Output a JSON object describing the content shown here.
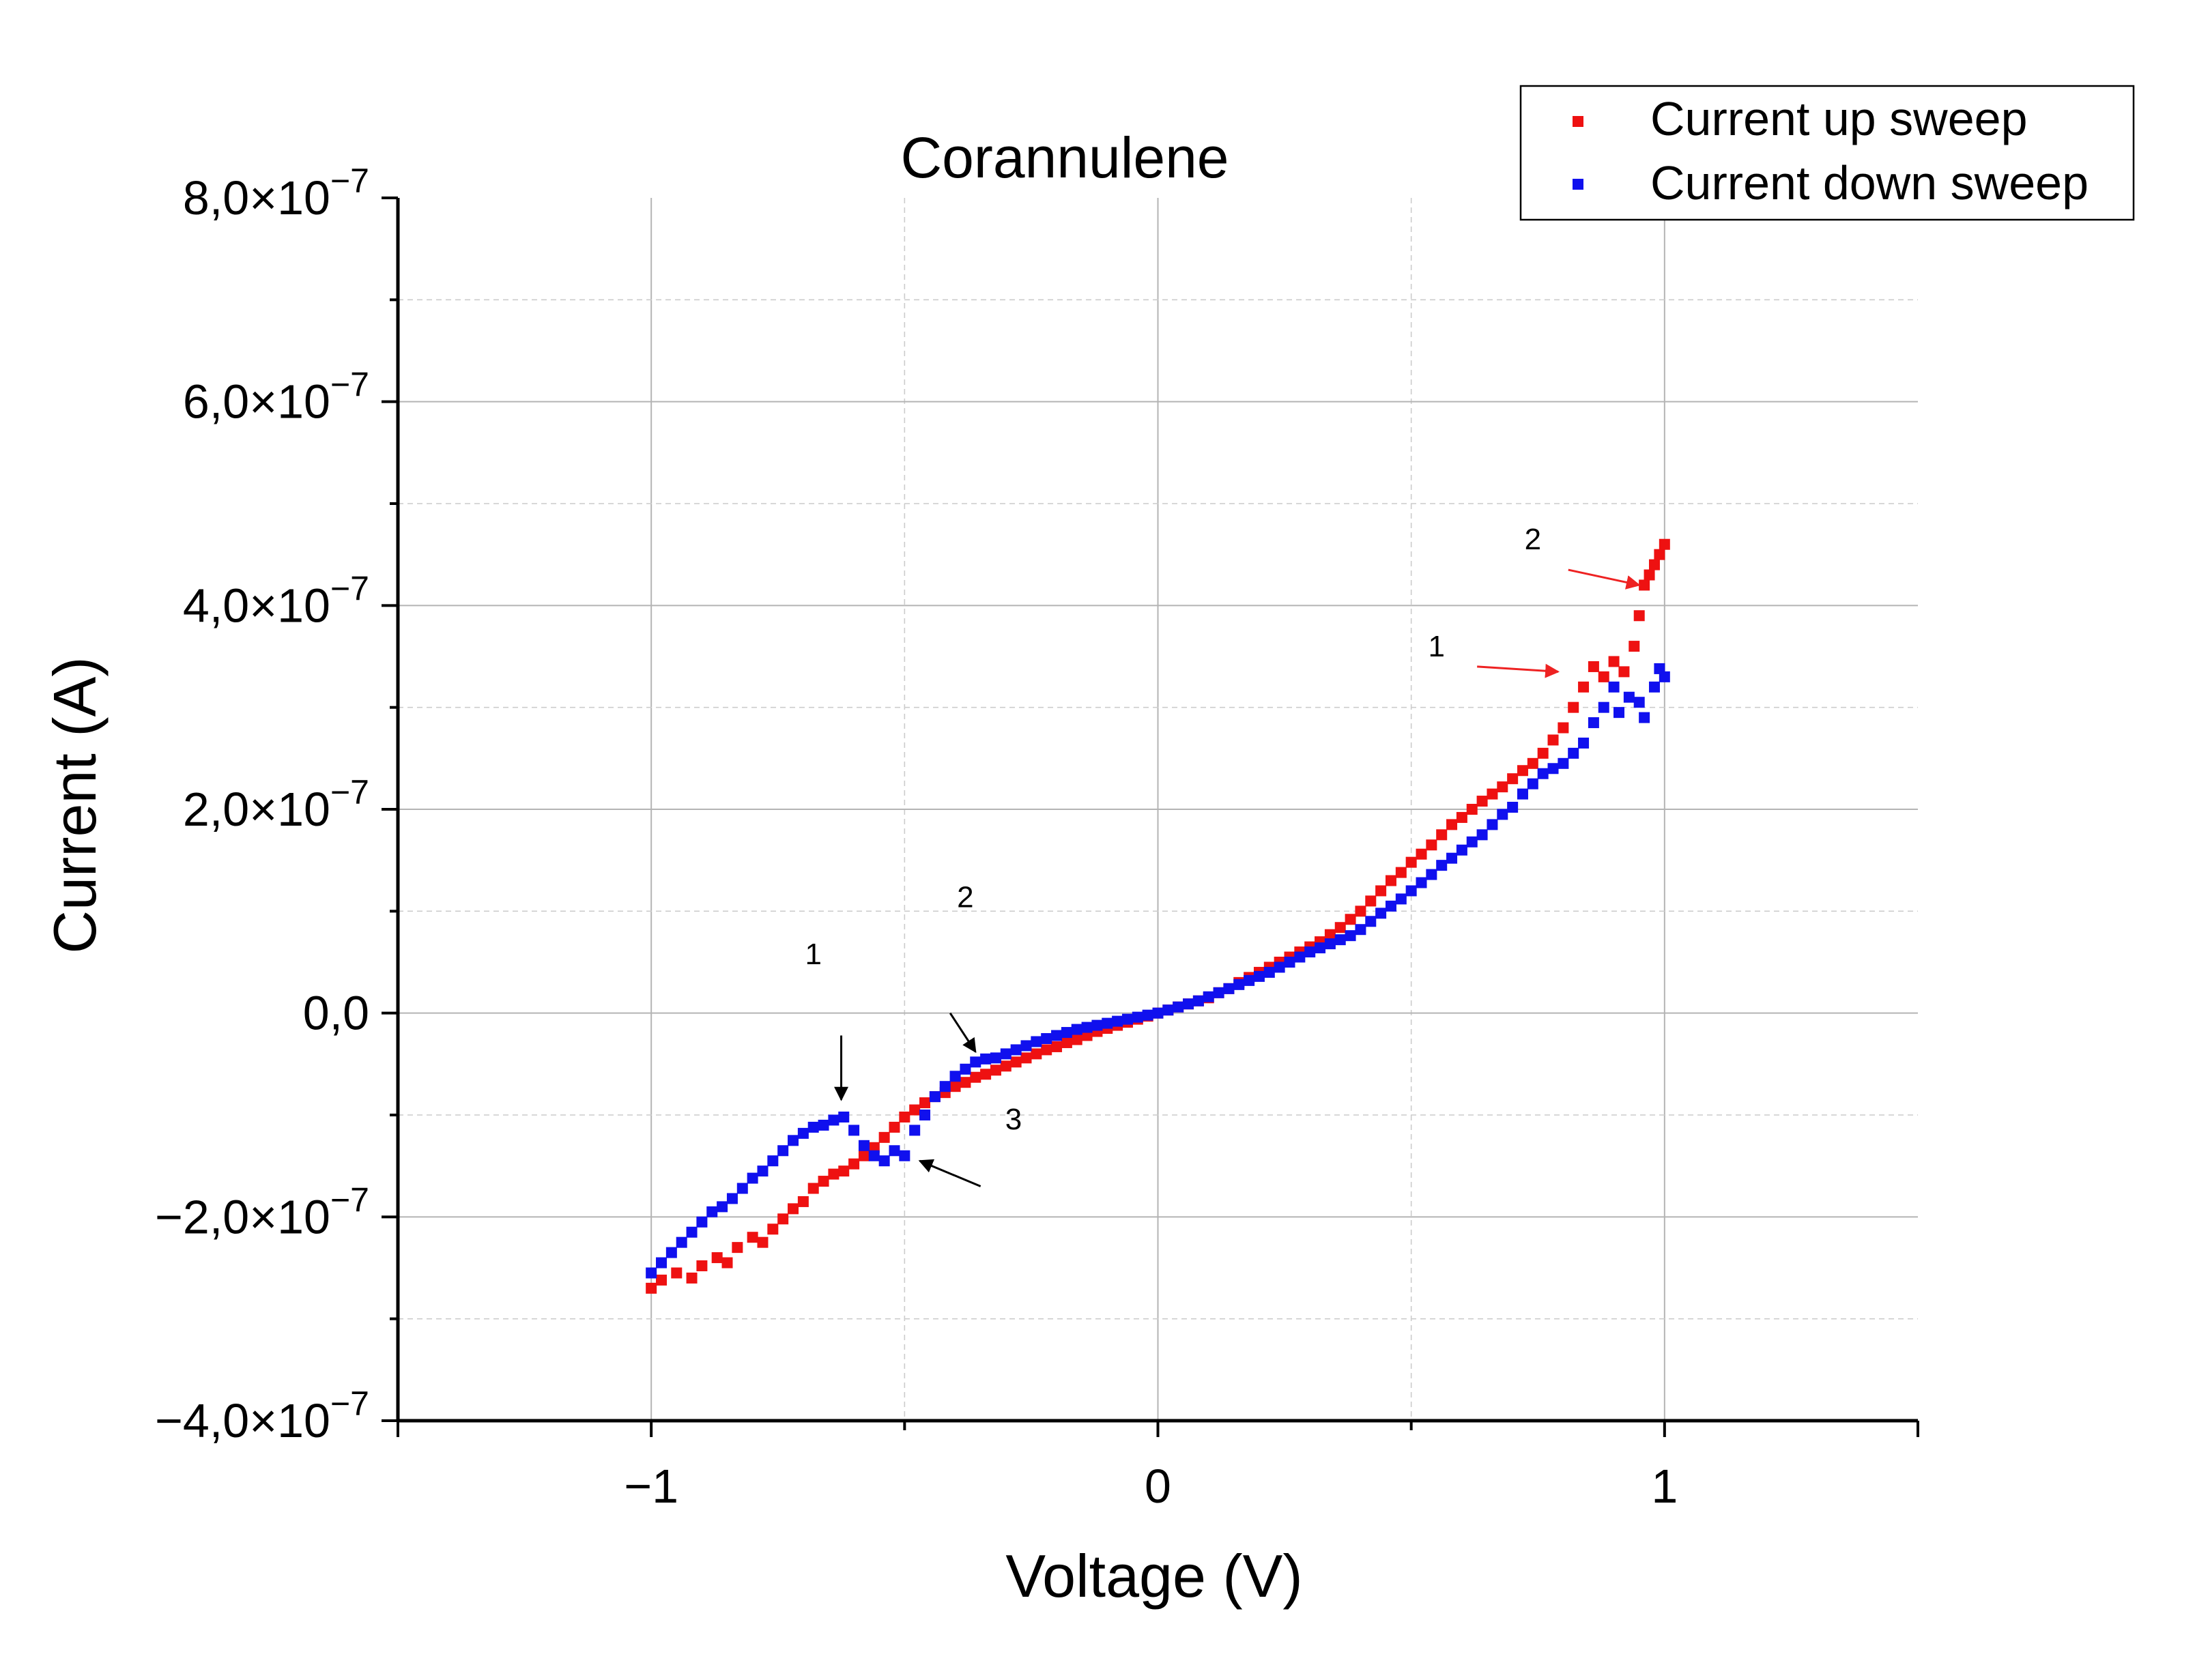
{
  "chart_data": {
    "type": "scatter",
    "title": "Corannulene",
    "xlabel": "Voltage (V)",
    "ylabel": "Current (A)",
    "xlim": [
      -1.5,
      1.5
    ],
    "ylim": [
      -4e-07,
      8e-07
    ],
    "grid": true,
    "legend_position": "top-right",
    "x_ticks": [
      {
        "value": -1,
        "label": "−1"
      },
      {
        "value": 0,
        "label": "0"
      },
      {
        "value": 1,
        "label": "1"
      }
    ],
    "y_ticks": [
      {
        "value": 8e-07,
        "mantissa": "8,0",
        "exp": "−7"
      },
      {
        "value": 6e-07,
        "mantissa": "6,0",
        "exp": "−7"
      },
      {
        "value": 4e-07,
        "mantissa": "4,0",
        "exp": "−7"
      },
      {
        "value": 2e-07,
        "mantissa": "2,0",
        "exp": "−7"
      },
      {
        "value": 0,
        "mantissa": "0,0",
        "exp": ""
      },
      {
        "value": -2e-07,
        "mantissa": "−2,0",
        "exp": "−7"
      },
      {
        "value": -4e-07,
        "mantissa": "−4,0",
        "exp": "−7"
      }
    ],
    "times_symbol": "×10",
    "series": [
      {
        "name": "Current up sweep",
        "color": "#ee1111",
        "points": [
          [
            -1.0,
            -2.7e-07
          ],
          [
            -0.98,
            -2.62e-07
          ],
          [
            -0.95,
            -2.55e-07
          ],
          [
            -0.92,
            -2.6e-07
          ],
          [
            -0.9,
            -2.48e-07
          ],
          [
            -0.87,
            -2.4e-07
          ],
          [
            -0.85,
            -2.45e-07
          ],
          [
            -0.83,
            -2.3e-07
          ],
          [
            -0.8,
            -2.2e-07
          ],
          [
            -0.78,
            -2.25e-07
          ],
          [
            -0.76,
            -2.12e-07
          ],
          [
            -0.74,
            -2.02e-07
          ],
          [
            -0.72,
            -1.92e-07
          ],
          [
            -0.7,
            -1.85e-07
          ],
          [
            -0.68,
            -1.72e-07
          ],
          [
            -0.66,
            -1.65e-07
          ],
          [
            -0.64,
            -1.58e-07
          ],
          [
            -0.62,
            -1.55e-07
          ],
          [
            -0.6,
            -1.48e-07
          ],
          [
            -0.58,
            -1.4e-07
          ],
          [
            -0.56,
            -1.32e-07
          ],
          [
            -0.54,
            -1.22e-07
          ],
          [
            -0.52,
            -1.12e-07
          ],
          [
            -0.5,
            -1.02e-07
          ],
          [
            -0.48,
            -9.5e-08
          ],
          [
            -0.46,
            -8.8e-08
          ],
          [
            -0.44,
            -8.2e-08
          ],
          [
            -0.42,
            -7.8e-08
          ],
          [
            -0.4,
            -7.2e-08
          ],
          [
            -0.38,
            -6.8e-08
          ],
          [
            -0.36,
            -6.3e-08
          ],
          [
            -0.34,
            -6e-08
          ],
          [
            -0.32,
            -5.6e-08
          ],
          [
            -0.3,
            -5.2e-08
          ],
          [
            -0.28,
            -4.8e-08
          ],
          [
            -0.26,
            -4.4e-08
          ],
          [
            -0.24,
            -4e-08
          ],
          [
            -0.22,
            -3.6e-08
          ],
          [
            -0.2,
            -3.3e-08
          ],
          [
            -0.18,
            -2.9e-08
          ],
          [
            -0.16,
            -2.6e-08
          ],
          [
            -0.14,
            -2.2e-08
          ],
          [
            -0.12,
            -1.8e-08
          ],
          [
            -0.1,
            -1.5e-08
          ],
          [
            -0.08,
            -1.2e-08
          ],
          [
            -0.06,
            -9e-09
          ],
          [
            -0.04,
            -6e-09
          ],
          [
            -0.02,
            -3e-09
          ],
          [
            0.0,
            0.0
          ],
          [
            0.02,
            3e-09
          ],
          [
            0.04,
            6e-09
          ],
          [
            0.06,
            9e-09
          ],
          [
            0.08,
            1.2e-08
          ],
          [
            0.1,
            1.5e-08
          ],
          [
            0.12,
            2e-08
          ],
          [
            0.14,
            2.4e-08
          ],
          [
            0.16,
            3e-08
          ],
          [
            0.18,
            3.5e-08
          ],
          [
            0.2,
            4e-08
          ],
          [
            0.22,
            4.5e-08
          ],
          [
            0.24,
            5e-08
          ],
          [
            0.26,
            5.5e-08
          ],
          [
            0.28,
            6e-08
          ],
          [
            0.3,
            6.5e-08
          ],
          [
            0.32,
            7e-08
          ],
          [
            0.34,
            7.7e-08
          ],
          [
            0.36,
            8.4e-08
          ],
          [
            0.38,
            9.2e-08
          ],
          [
            0.4,
            1e-07
          ],
          [
            0.42,
            1.1e-07
          ],
          [
            0.44,
            1.2e-07
          ],
          [
            0.46,
            1.3e-07
          ],
          [
            0.48,
            1.38e-07
          ],
          [
            0.5,
            1.48e-07
          ],
          [
            0.52,
            1.56e-07
          ],
          [
            0.54,
            1.65e-07
          ],
          [
            0.56,
            1.75e-07
          ],
          [
            0.58,
            1.85e-07
          ],
          [
            0.6,
            1.92e-07
          ],
          [
            0.62,
            2e-07
          ],
          [
            0.64,
            2.08e-07
          ],
          [
            0.66,
            2.15e-07
          ],
          [
            0.68,
            2.22e-07
          ],
          [
            0.7,
            2.3e-07
          ],
          [
            0.72,
            2.38e-07
          ],
          [
            0.74,
            2.45e-07
          ],
          [
            0.76,
            2.55e-07
          ],
          [
            0.78,
            2.68e-07
          ],
          [
            0.8,
            2.8e-07
          ],
          [
            0.82,
            3e-07
          ],
          [
            0.84,
            3.2e-07
          ],
          [
            0.86,
            3.4e-07
          ],
          [
            0.88,
            3.3e-07
          ],
          [
            0.9,
            3.45e-07
          ],
          [
            0.92,
            3.35e-07
          ],
          [
            0.94,
            3.6e-07
          ],
          [
            0.95,
            3.9e-07
          ],
          [
            0.96,
            4.2e-07
          ],
          [
            0.97,
            4.3e-07
          ],
          [
            0.98,
            4.4e-07
          ],
          [
            0.99,
            4.5e-07
          ],
          [
            1.0,
            4.6e-07
          ]
        ]
      },
      {
        "name": "Current down sweep",
        "color": "#1010ee",
        "points": [
          [
            1.0,
            3.3e-07
          ],
          [
            0.99,
            3.38e-07
          ],
          [
            0.98,
            3.2e-07
          ],
          [
            0.96,
            2.9e-07
          ],
          [
            0.95,
            3.05e-07
          ],
          [
            0.93,
            3.1e-07
          ],
          [
            0.91,
            2.95e-07
          ],
          [
            0.9,
            3.2e-07
          ],
          [
            0.88,
            3e-07
          ],
          [
            0.86,
            2.85e-07
          ],
          [
            0.84,
            2.65e-07
          ],
          [
            0.82,
            2.55e-07
          ],
          [
            0.8,
            2.45e-07
          ],
          [
            0.78,
            2.4e-07
          ],
          [
            0.76,
            2.35e-07
          ],
          [
            0.74,
            2.25e-07
          ],
          [
            0.72,
            2.15e-07
          ],
          [
            0.7,
            2.02e-07
          ],
          [
            0.68,
            1.95e-07
          ],
          [
            0.66,
            1.85e-07
          ],
          [
            0.64,
            1.75e-07
          ],
          [
            0.62,
            1.68e-07
          ],
          [
            0.6,
            1.6e-07
          ],
          [
            0.58,
            1.52e-07
          ],
          [
            0.56,
            1.45e-07
          ],
          [
            0.54,
            1.36e-07
          ],
          [
            0.52,
            1.28e-07
          ],
          [
            0.5,
            1.2e-07
          ],
          [
            0.48,
            1.12e-07
          ],
          [
            0.46,
            1.05e-07
          ],
          [
            0.44,
            9.8e-08
          ],
          [
            0.42,
            9e-08
          ],
          [
            0.4,
            8.2e-08
          ],
          [
            0.38,
            7.6e-08
          ],
          [
            0.36,
            7.2e-08
          ],
          [
            0.34,
            6.8e-08
          ],
          [
            0.32,
            6.4e-08
          ],
          [
            0.3,
            6e-08
          ],
          [
            0.28,
            5.5e-08
          ],
          [
            0.26,
            5e-08
          ],
          [
            0.24,
            4.5e-08
          ],
          [
            0.22,
            4e-08
          ],
          [
            0.2,
            3.6e-08
          ],
          [
            0.18,
            3.2e-08
          ],
          [
            0.16,
            2.8e-08
          ],
          [
            0.14,
            2.4e-08
          ],
          [
            0.12,
            2e-08
          ],
          [
            0.1,
            1.6e-08
          ],
          [
            0.08,
            1.2e-08
          ],
          [
            0.06,
            9e-09
          ],
          [
            0.04,
            6e-09
          ],
          [
            0.02,
            3e-09
          ],
          [
            0.0,
            0.0
          ],
          [
            -0.02,
            -2e-09
          ],
          [
            -0.04,
            -4e-09
          ],
          [
            -0.06,
            -6e-09
          ],
          [
            -0.08,
            -8e-09
          ],
          [
            -0.1,
            -1e-08
          ],
          [
            -0.12,
            -1.2e-08
          ],
          [
            -0.14,
            -1.4e-08
          ],
          [
            -0.16,
            -1.6e-08
          ],
          [
            -0.18,
            -1.9e-08
          ],
          [
            -0.2,
            -2.2e-08
          ],
          [
            -0.22,
            -2.5e-08
          ],
          [
            -0.24,
            -2.8e-08
          ],
          [
            -0.26,
            -3.2e-08
          ],
          [
            -0.28,
            -3.6e-08
          ],
          [
            -0.3,
            -4e-08
          ],
          [
            -0.32,
            -4.4e-08
          ],
          [
            -0.34,
            -4.5e-08
          ],
          [
            -0.36,
            -4.8e-08
          ],
          [
            -0.38,
            -5.5e-08
          ],
          [
            -0.4,
            -6.2e-08
          ],
          [
            -0.42,
            -7.2e-08
          ],
          [
            -0.44,
            -8.2e-08
          ],
          [
            -0.46,
            -1e-07
          ],
          [
            -0.48,
            -1.15e-07
          ],
          [
            -0.5,
            -1.4e-07
          ],
          [
            -0.52,
            -1.35e-07
          ],
          [
            -0.54,
            -1.45e-07
          ],
          [
            -0.56,
            -1.4e-07
          ],
          [
            -0.58,
            -1.3e-07
          ],
          [
            -0.6,
            -1.15e-07
          ],
          [
            -0.62,
            -1.02e-07
          ],
          [
            -0.64,
            -1.05e-07
          ],
          [
            -0.66,
            -1.1e-07
          ],
          [
            -0.68,
            -1.12e-07
          ],
          [
            -0.7,
            -1.18e-07
          ],
          [
            -0.72,
            -1.25e-07
          ],
          [
            -0.74,
            -1.35e-07
          ],
          [
            -0.76,
            -1.45e-07
          ],
          [
            -0.78,
            -1.55e-07
          ],
          [
            -0.8,
            -1.62e-07
          ],
          [
            -0.82,
            -1.72e-07
          ],
          [
            -0.84,
            -1.82e-07
          ],
          [
            -0.86,
            -1.9e-07
          ],
          [
            -0.88,
            -1.95e-07
          ],
          [
            -0.9,
            -2.05e-07
          ],
          [
            -0.92,
            -2.15e-07
          ],
          [
            -0.94,
            -2.25e-07
          ],
          [
            -0.96,
            -2.35e-07
          ],
          [
            -0.98,
            -2.45e-07
          ],
          [
            -1.0,
            -2.55e-07
          ]
        ]
      }
    ],
    "annotations": [
      {
        "id": "red-1",
        "label": "1",
        "color": "#ee2222",
        "text_at": [
          0.55,
          3.5e-07
        ],
        "arrow_from": [
          0.63,
          3.4e-07
        ],
        "arrow_to": [
          0.79,
          3.35e-07
        ]
      },
      {
        "id": "red-2",
        "label": "2",
        "color": "#ee2222",
        "text_at": [
          0.74,
          4.55e-07
        ],
        "arrow_from": [
          0.81,
          4.35e-07
        ],
        "arrow_to": [
          0.95,
          4.2e-07
        ]
      },
      {
        "id": "black-1",
        "label": "1",
        "color": "#000000",
        "text_at": [
          -0.68,
          4.8e-08
        ],
        "arrow_from": [
          -0.625,
          -2.2e-08
        ],
        "arrow_to": [
          -0.625,
          -8.5e-08
        ]
      },
      {
        "id": "black-2",
        "label": "2",
        "color": "#000000",
        "text_at": [
          -0.38,
          1.04e-07
        ],
        "arrow_from": [
          -0.41,
          0.0
        ],
        "arrow_to": [
          -0.36,
          -3.8e-08
        ]
      },
      {
        "id": "black-3",
        "label": "3",
        "color": "#000000",
        "text_at": [
          -0.285,
          -1.14e-07
        ],
        "arrow_from": [
          -0.35,
          -1.7e-07
        ],
        "arrow_to": [
          -0.47,
          -1.45e-07
        ]
      }
    ]
  }
}
